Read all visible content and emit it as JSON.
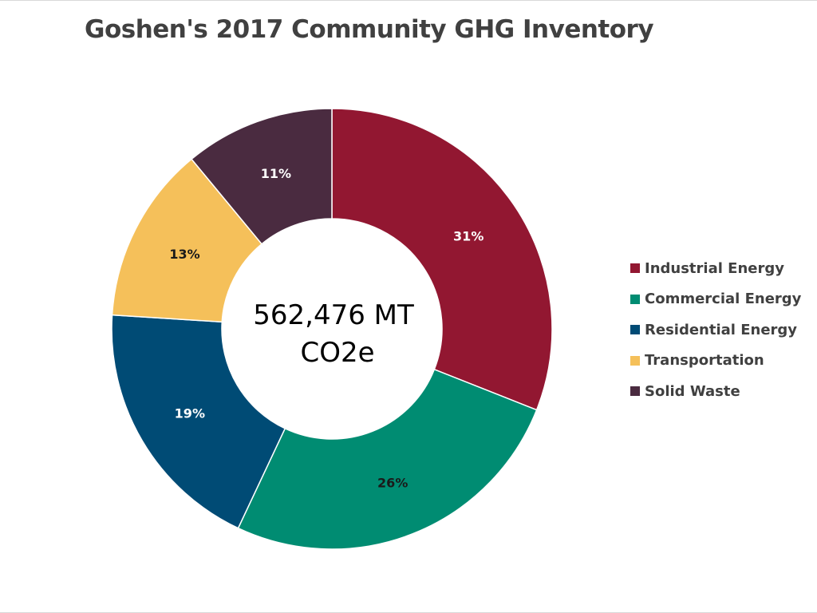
{
  "chart_data": {
    "type": "pie",
    "style": "donut",
    "title": "Goshen's 2017 Community GHG Inventory",
    "center_label": [
      "562,476 MT",
      "CO2e"
    ],
    "legend_position": "right",
    "categories": [
      "Industrial Energy",
      "Commercial Energy",
      "Residential Energy",
      "Transportation",
      "Solid Waste"
    ],
    "values": [
      31,
      26,
      19,
      13,
      11
    ],
    "data_labels": [
      "31%",
      "26%",
      "19%",
      "13%",
      "11%"
    ],
    "colors": [
      "#921731",
      "#008C72",
      "#004B75",
      "#F5C05A",
      "#4A2B40"
    ],
    "label_colors": [
      "#ffffff",
      "#1a1a1a",
      "#ffffff",
      "#1a1a1a",
      "#ffffff"
    ]
  }
}
